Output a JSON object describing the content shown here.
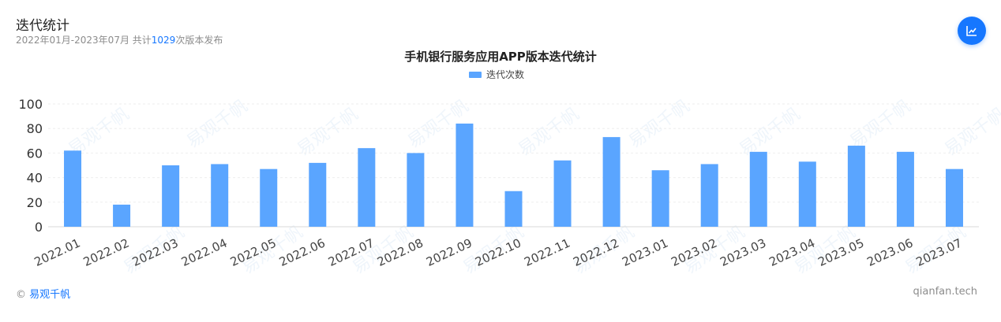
{
  "header": {
    "title": "迭代统计",
    "subtitle_prefix": "2022年01月-2023年07月 共计",
    "subtitle_count": "1029",
    "subtitle_suffix": "次版本发布"
  },
  "chart_button_icon": "line-chart-icon",
  "footer": {
    "copyright_symbol": "©",
    "brand": "易观千帆",
    "site": "qianfan.tech"
  },
  "watermark": {
    "text": "易观千帆"
  },
  "colors": {
    "bar": "#5aa5ff",
    "accent": "#1677ff"
  },
  "chart_data": {
    "type": "bar",
    "title": "手机银行服务应用APP版本迭代统计",
    "legend_position": "top-center",
    "categories": [
      "2022.01",
      "2022.02",
      "2022.03",
      "2022.04",
      "2022.05",
      "2022.06",
      "2022.07",
      "2022.08",
      "2022.09",
      "2022.10",
      "2022.11",
      "2022.12",
      "2023.01",
      "2023.02",
      "2023.03",
      "2023.04",
      "2023.05",
      "2023.06",
      "2023.07"
    ],
    "series": [
      {
        "name": "迭代次数",
        "values": [
          62,
          18,
          50,
          51,
          47,
          52,
          64,
          60,
          84,
          29,
          54,
          73,
          46,
          51,
          61,
          53,
          66,
          61,
          47
        ]
      }
    ],
    "ylim": [
      0,
      100
    ],
    "yticks": [
      0,
      20,
      40,
      60,
      80,
      100
    ],
    "grid": true
  }
}
